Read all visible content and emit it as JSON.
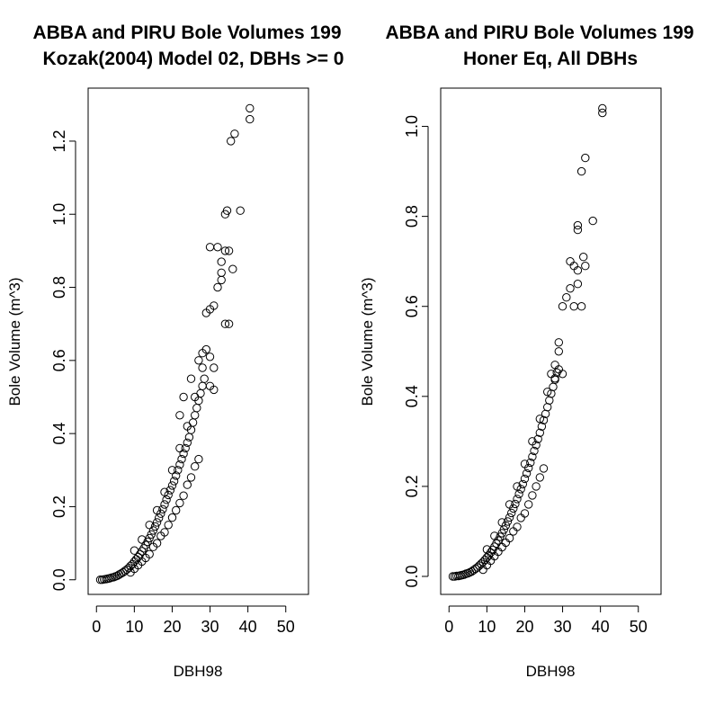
{
  "chart_data": [
    {
      "type": "scatter",
      "title": "ABBA and PIRU Bole Volumes 199",
      "subtitle": "Kozak(2004) Model 02, DBHs >= 0",
      "xlabel": "DBH98",
      "ylabel": "Bole Volume (m^3)",
      "xlim": [
        -2.2,
        56
      ],
      "ylim": [
        -0.04,
        1.345
      ],
      "xticks": [
        0,
        10,
        20,
        30,
        40,
        50
      ],
      "xtick_labels": [
        "0",
        "10",
        "20",
        "30",
        "40",
        "50"
      ],
      "yticks": [
        0,
        0.2,
        0.4,
        0.6,
        0.8,
        1.0,
        1.2
      ],
      "ytick_labels": [
        "0.0",
        "0.2",
        "0.4",
        "0.6",
        "0.8",
        "1.0",
        "1.2"
      ],
      "marker": "open-circle",
      "grid": false,
      "series": [
        {
          "points": [
            [
              1,
              0.0
            ],
            [
              1.5,
              0.0
            ],
            [
              2,
              0.001
            ],
            [
              2.5,
              0.002
            ],
            [
              3,
              0.003
            ],
            [
              3.5,
              0.004
            ],
            [
              4,
              0.006
            ],
            [
              4.5,
              0.007
            ],
            [
              5,
              0.009
            ],
            [
              5.5,
              0.011
            ],
            [
              6,
              0.014
            ],
            [
              6.5,
              0.017
            ],
            [
              7,
              0.02
            ],
            [
              7.5,
              0.024
            ],
            [
              8,
              0.028
            ],
            [
              8.5,
              0.032
            ],
            [
              9,
              0.038
            ],
            [
              9.5,
              0.043
            ],
            [
              10,
              0.05
            ],
            [
              10.5,
              0.056
            ],
            [
              11,
              0.062
            ],
            [
              11.5,
              0.07
            ],
            [
              12,
              0.078
            ],
            [
              12.5,
              0.086
            ],
            [
              13,
              0.095
            ],
            [
              13.5,
              0.104
            ],
            [
              14,
              0.114
            ],
            [
              14.5,
              0.124
            ],
            [
              15,
              0.135
            ],
            [
              15.5,
              0.146
            ],
            [
              16,
              0.157
            ],
            [
              16.5,
              0.169
            ],
            [
              17,
              0.181
            ],
            [
              17.5,
              0.193
            ],
            [
              18,
              0.206
            ],
            [
              18.5,
              0.219
            ],
            [
              19,
              0.232
            ],
            [
              19.5,
              0.245
            ],
            [
              20,
              0.258
            ],
            [
              20.5,
              0.27
            ],
            [
              21,
              0.285
            ],
            [
              21.5,
              0.3
            ],
            [
              22,
              0.315
            ],
            [
              22.5,
              0.33
            ],
            [
              23,
              0.345
            ],
            [
              23.5,
              0.36
            ],
            [
              24,
              0.375
            ],
            [
              24.5,
              0.39
            ],
            [
              25,
              0.41
            ],
            [
              25.5,
              0.43
            ],
            [
              26,
              0.45
            ],
            [
              26.5,
              0.47
            ],
            [
              27,
              0.49
            ],
            [
              27.5,
              0.51
            ],
            [
              28,
              0.53
            ],
            [
              28.5,
              0.55
            ],
            [
              9,
              0.02
            ],
            [
              10,
              0.03
            ],
            [
              11,
              0.04
            ],
            [
              12,
              0.05
            ],
            [
              13,
              0.06
            ],
            [
              14,
              0.07
            ],
            [
              15,
              0.09
            ],
            [
              16,
              0.1
            ],
            [
              17,
              0.12
            ],
            [
              18,
              0.13
            ],
            [
              19,
              0.15
            ],
            [
              20,
              0.17
            ],
            [
              21,
              0.19
            ],
            [
              22,
              0.21
            ],
            [
              23,
              0.23
            ],
            [
              24,
              0.26
            ],
            [
              25,
              0.28
            ],
            [
              26,
              0.31
            ],
            [
              27,
              0.33
            ],
            [
              10,
              0.08
            ],
            [
              12,
              0.11
            ],
            [
              14,
              0.15
            ],
            [
              16,
              0.19
            ],
            [
              18,
              0.24
            ],
            [
              20,
              0.3
            ],
            [
              22,
              0.36
            ],
            [
              24,
              0.42
            ],
            [
              26,
              0.5
            ],
            [
              28,
              0.58
            ],
            [
              22,
              0.45
            ],
            [
              23,
              0.5
            ],
            [
              25,
              0.55
            ],
            [
              27,
              0.6
            ],
            [
              28,
              0.62
            ],
            [
              29,
              0.63
            ],
            [
              30,
              0.53
            ],
            [
              31,
              0.52
            ],
            [
              30,
              0.61
            ],
            [
              31,
              0.58
            ],
            [
              29,
              0.73
            ],
            [
              30,
              0.74
            ],
            [
              31,
              0.75
            ],
            [
              32,
              0.8
            ],
            [
              30,
              0.91
            ],
            [
              32,
              0.91
            ],
            [
              34,
              0.9
            ],
            [
              33,
              0.84
            ],
            [
              33,
              0.82
            ],
            [
              33,
              0.87
            ],
            [
              34,
              0.7
            ],
            [
              35,
              0.7
            ],
            [
              36,
              0.85
            ],
            [
              35,
              0.9
            ],
            [
              34,
              1.0
            ],
            [
              34.5,
              1.01
            ],
            [
              38,
              1.01
            ],
            [
              35.5,
              1.2
            ],
            [
              36.5,
              1.22
            ],
            [
              40.5,
              1.26
            ],
            [
              40.5,
              1.29
            ]
          ]
        }
      ]
    },
    {
      "type": "scatter",
      "title": "ABBA and PIRU Bole Volumes 199",
      "subtitle": "Honer Eq, All DBHs",
      "xlabel": "DBH98",
      "ylabel": "Bole Volume (m^3)",
      "xlim": [
        -2.2,
        56
      ],
      "ylim": [
        -0.04,
        1.085
      ],
      "xticks": [
        0,
        10,
        20,
        30,
        40,
        50
      ],
      "xtick_labels": [
        "0",
        "10",
        "20",
        "30",
        "40",
        "50"
      ],
      "yticks": [
        0,
        0.2,
        0.4,
        0.6,
        0.8,
        1.0
      ],
      "ytick_labels": [
        "0.0",
        "0.2",
        "0.4",
        "0.6",
        "0.8",
        "1.0"
      ],
      "marker": "open-circle",
      "grid": false,
      "series": [
        {
          "points": [
            [
              1,
              0.0
            ],
            [
              1.5,
              0.0
            ],
            [
              2,
              0.001
            ],
            [
              2.5,
              0.001
            ],
            [
              3,
              0.002
            ],
            [
              3.5,
              0.003
            ],
            [
              4,
              0.004
            ],
            [
              4.5,
              0.006
            ],
            [
              5,
              0.007
            ],
            [
              5.5,
              0.009
            ],
            [
              6,
              0.011
            ],
            [
              6.5,
              0.014
            ],
            [
              7,
              0.017
            ],
            [
              7.5,
              0.02
            ],
            [
              8,
              0.024
            ],
            [
              8.5,
              0.028
            ],
            [
              9,
              0.032
            ],
            [
              9.5,
              0.037
            ],
            [
              10,
              0.042
            ],
            [
              10.5,
              0.047
            ],
            [
              11,
              0.053
            ],
            [
              11.5,
              0.059
            ],
            [
              12,
              0.066
            ],
            [
              12.5,
              0.073
            ],
            [
              13,
              0.08
            ],
            [
              13.5,
              0.088
            ],
            [
              14,
              0.096
            ],
            [
              14.5,
              0.104
            ],
            [
              15,
              0.113
            ],
            [
              15.5,
              0.122
            ],
            [
              16,
              0.131
            ],
            [
              16.5,
              0.141
            ],
            [
              17,
              0.151
            ],
            [
              17.5,
              0.161
            ],
            [
              18,
              0.172
            ],
            [
              18.5,
              0.183
            ],
            [
              19,
              0.194
            ],
            [
              19.5,
              0.205
            ],
            [
              20,
              0.217
            ],
            [
              20.5,
              0.229
            ],
            [
              21,
              0.241
            ],
            [
              21.5,
              0.253
            ],
            [
              22,
              0.266
            ],
            [
              22.5,
              0.279
            ],
            [
              23,
              0.292
            ],
            [
              23.5,
              0.305
            ],
            [
              24,
              0.319
            ],
            [
              24.5,
              0.333
            ],
            [
              25,
              0.347
            ],
            [
              25.5,
              0.361
            ],
            [
              26,
              0.376
            ],
            [
              26.5,
              0.391
            ],
            [
              27,
              0.406
            ],
            [
              27.5,
              0.421
            ],
            [
              28,
              0.437
            ],
            [
              28.5,
              0.453
            ],
            [
              9,
              0.015
            ],
            [
              10,
              0.025
            ],
            [
              11,
              0.035
            ],
            [
              12,
              0.045
            ],
            [
              13,
              0.055
            ],
            [
              14,
              0.065
            ],
            [
              15,
              0.075
            ],
            [
              16,
              0.085
            ],
            [
              17,
              0.1
            ],
            [
              18,
              0.11
            ],
            [
              19,
              0.13
            ],
            [
              20,
              0.14
            ],
            [
              21,
              0.16
            ],
            [
              22,
              0.18
            ],
            [
              23,
              0.2
            ],
            [
              24,
              0.22
            ],
            [
              25,
              0.24
            ],
            [
              10,
              0.06
            ],
            [
              12,
              0.09
            ],
            [
              14,
              0.12
            ],
            [
              16,
              0.16
            ],
            [
              18,
              0.2
            ],
            [
              20,
              0.25
            ],
            [
              22,
              0.3
            ],
            [
              24,
              0.35
            ],
            [
              26,
              0.41
            ],
            [
              28,
              0.47
            ],
            [
              27,
              0.45
            ],
            [
              28,
              0.44
            ],
            [
              29,
              0.46
            ],
            [
              30,
              0.45
            ],
            [
              29,
              0.5
            ],
            [
              29,
              0.52
            ],
            [
              30,
              0.6
            ],
            [
              31,
              0.62
            ],
            [
              32,
              0.64
            ],
            [
              33,
              0.6
            ],
            [
              32,
              0.7
            ],
            [
              33,
              0.69
            ],
            [
              34,
              0.65
            ],
            [
              35,
              0.6
            ],
            [
              35.5,
              0.71
            ],
            [
              36,
              0.69
            ],
            [
              34,
              0.68
            ],
            [
              34,
              0.77
            ],
            [
              34,
              0.78
            ],
            [
              38,
              0.79
            ],
            [
              35,
              0.9
            ],
            [
              36,
              0.93
            ],
            [
              40.5,
              1.03
            ],
            [
              40.5,
              1.04
            ]
          ]
        }
      ]
    }
  ]
}
